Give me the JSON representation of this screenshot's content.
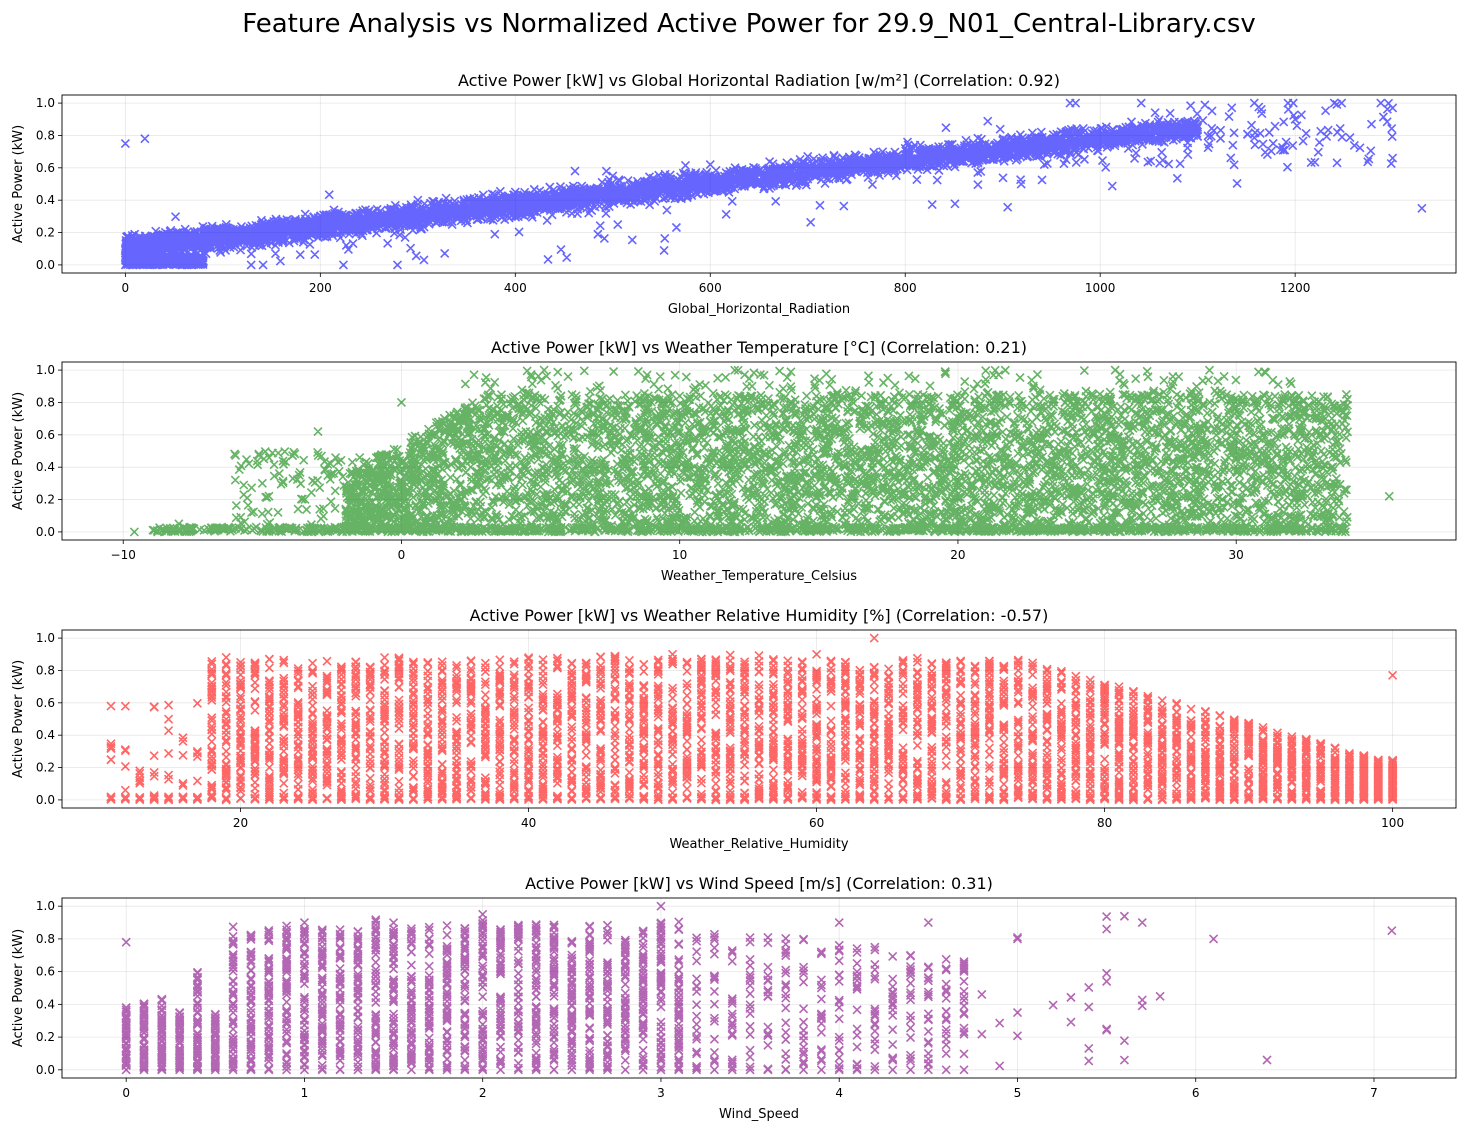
{
  "figure": {
    "title": "Feature Analysis vs Normalized Active Power for 29.9_N01_Central-Library.csv"
  },
  "chart_data": [
    {
      "type": "scatter",
      "title": "Active Power [kW] vs Global Horizontal Radiation [w/m²] (Correlation: 0.92)",
      "xlabel": "Global_Horizontal_Radiation",
      "ylabel": "Active Power (kW)",
      "color": "#0000ff",
      "marker": "x",
      "grid": true,
      "xlim": [
        -65,
        1365
      ],
      "ylim": [
        -0.05,
        1.05
      ],
      "xticks": [
        0,
        200,
        400,
        600,
        800,
        1000,
        1200
      ],
      "yticks": [
        0.0,
        0.2,
        0.4,
        0.6,
        0.8,
        1.0
      ],
      "sample_points": [
        [
          0,
          0.0
        ],
        [
          0,
          0.75
        ],
        [
          20,
          0.78
        ],
        [
          100,
          0.15
        ],
        [
          200,
          0.3
        ],
        [
          300,
          0.4
        ],
        [
          400,
          0.45
        ],
        [
          500,
          0.55
        ],
        [
          600,
          0.62
        ],
        [
          700,
          0.67
        ],
        [
          800,
          0.72
        ],
        [
          900,
          0.77
        ],
        [
          1000,
          0.8
        ],
        [
          1100,
          0.85
        ],
        [
          1200,
          0.9
        ],
        [
          1300,
          0.97
        ],
        [
          1300,
          0.66
        ],
        [
          1330,
          0.35
        ]
      ]
    },
    {
      "type": "scatter",
      "title": "Active Power [kW] vs Weather Temperature [°C] (Correlation: 0.21)",
      "xlabel": "Weather_Temperature_Celsius",
      "ylabel": "Active Power (kW)",
      "color": "#008000",
      "marker": "x",
      "grid": true,
      "xlim": [
        -12.2,
        37.9
      ],
      "ylim": [
        -0.05,
        1.05
      ],
      "xticks": [
        -10,
        0,
        10,
        20,
        30
      ],
      "yticks": [
        0.0,
        0.2,
        0.4,
        0.6,
        0.8,
        1.0
      ],
      "sample_points": [
        [
          -9.6,
          0.0
        ],
        [
          -8,
          0.05
        ],
        [
          -5,
          0.3
        ],
        [
          -3,
          0.62
        ],
        [
          0,
          0.8
        ],
        [
          5,
          0.7
        ],
        [
          10,
          0.5
        ],
        [
          15,
          0.6
        ],
        [
          20,
          0.55
        ],
        [
          25,
          0.5
        ],
        [
          30,
          0.45
        ],
        [
          33,
          0.7
        ],
        [
          35.5,
          0.22
        ]
      ]
    },
    {
      "type": "scatter",
      "title": "Active Power [kW] vs Weather Relative Humidity [%] (Correlation: -0.57)",
      "xlabel": "Weather_Relative_Humidity",
      "ylabel": "Active Power (kW)",
      "color": "#ff0000",
      "marker": "x",
      "grid": true,
      "xlim": [
        7.6,
        104.4
      ],
      "ylim": [
        -0.05,
        1.05
      ],
      "xticks": [
        20,
        40,
        60,
        80,
        100
      ],
      "yticks": [
        0.0,
        0.2,
        0.4,
        0.6,
        0.8,
        1.0
      ],
      "sample_points": [
        [
          11,
          0.58
        ],
        [
          14,
          0.17
        ],
        [
          15,
          0.0
        ],
        [
          20,
          0.85
        ],
        [
          30,
          0.88
        ],
        [
          40,
          0.88
        ],
        [
          50,
          0.9
        ],
        [
          60,
          0.9
        ],
        [
          64,
          1.0
        ],
        [
          70,
          0.85
        ],
        [
          80,
          0.6
        ],
        [
          90,
          0.3
        ],
        [
          100,
          0.77
        ]
      ]
    },
    {
      "type": "scatter",
      "title": "Active Power [kW] vs Wind Speed [m/s] (Correlation: 0.31)",
      "xlabel": "Wind_Speed",
      "ylabel": "Active Power (kW)",
      "color": "#800080",
      "marker": "x",
      "grid": true,
      "xlim": [
        -0.36,
        7.46
      ],
      "ylim": [
        -0.05,
        1.05
      ],
      "xticks": [
        0,
        1,
        2,
        3,
        4,
        5,
        6,
        7
      ],
      "yticks": [
        0.0,
        0.2,
        0.4,
        0.6,
        0.8,
        1.0
      ],
      "sample_points": [
        [
          0,
          0.78
        ],
        [
          1,
          0.9
        ],
        [
          2,
          0.95
        ],
        [
          3,
          1.0
        ],
        [
          4,
          0.9
        ],
        [
          4.5,
          0.9
        ],
        [
          5,
          0.8
        ],
        [
          5.5,
          0.25
        ],
        [
          5.7,
          0.9
        ],
        [
          6.1,
          0.8
        ],
        [
          6.4,
          0.06
        ],
        [
          7.1,
          0.85
        ]
      ]
    }
  ]
}
